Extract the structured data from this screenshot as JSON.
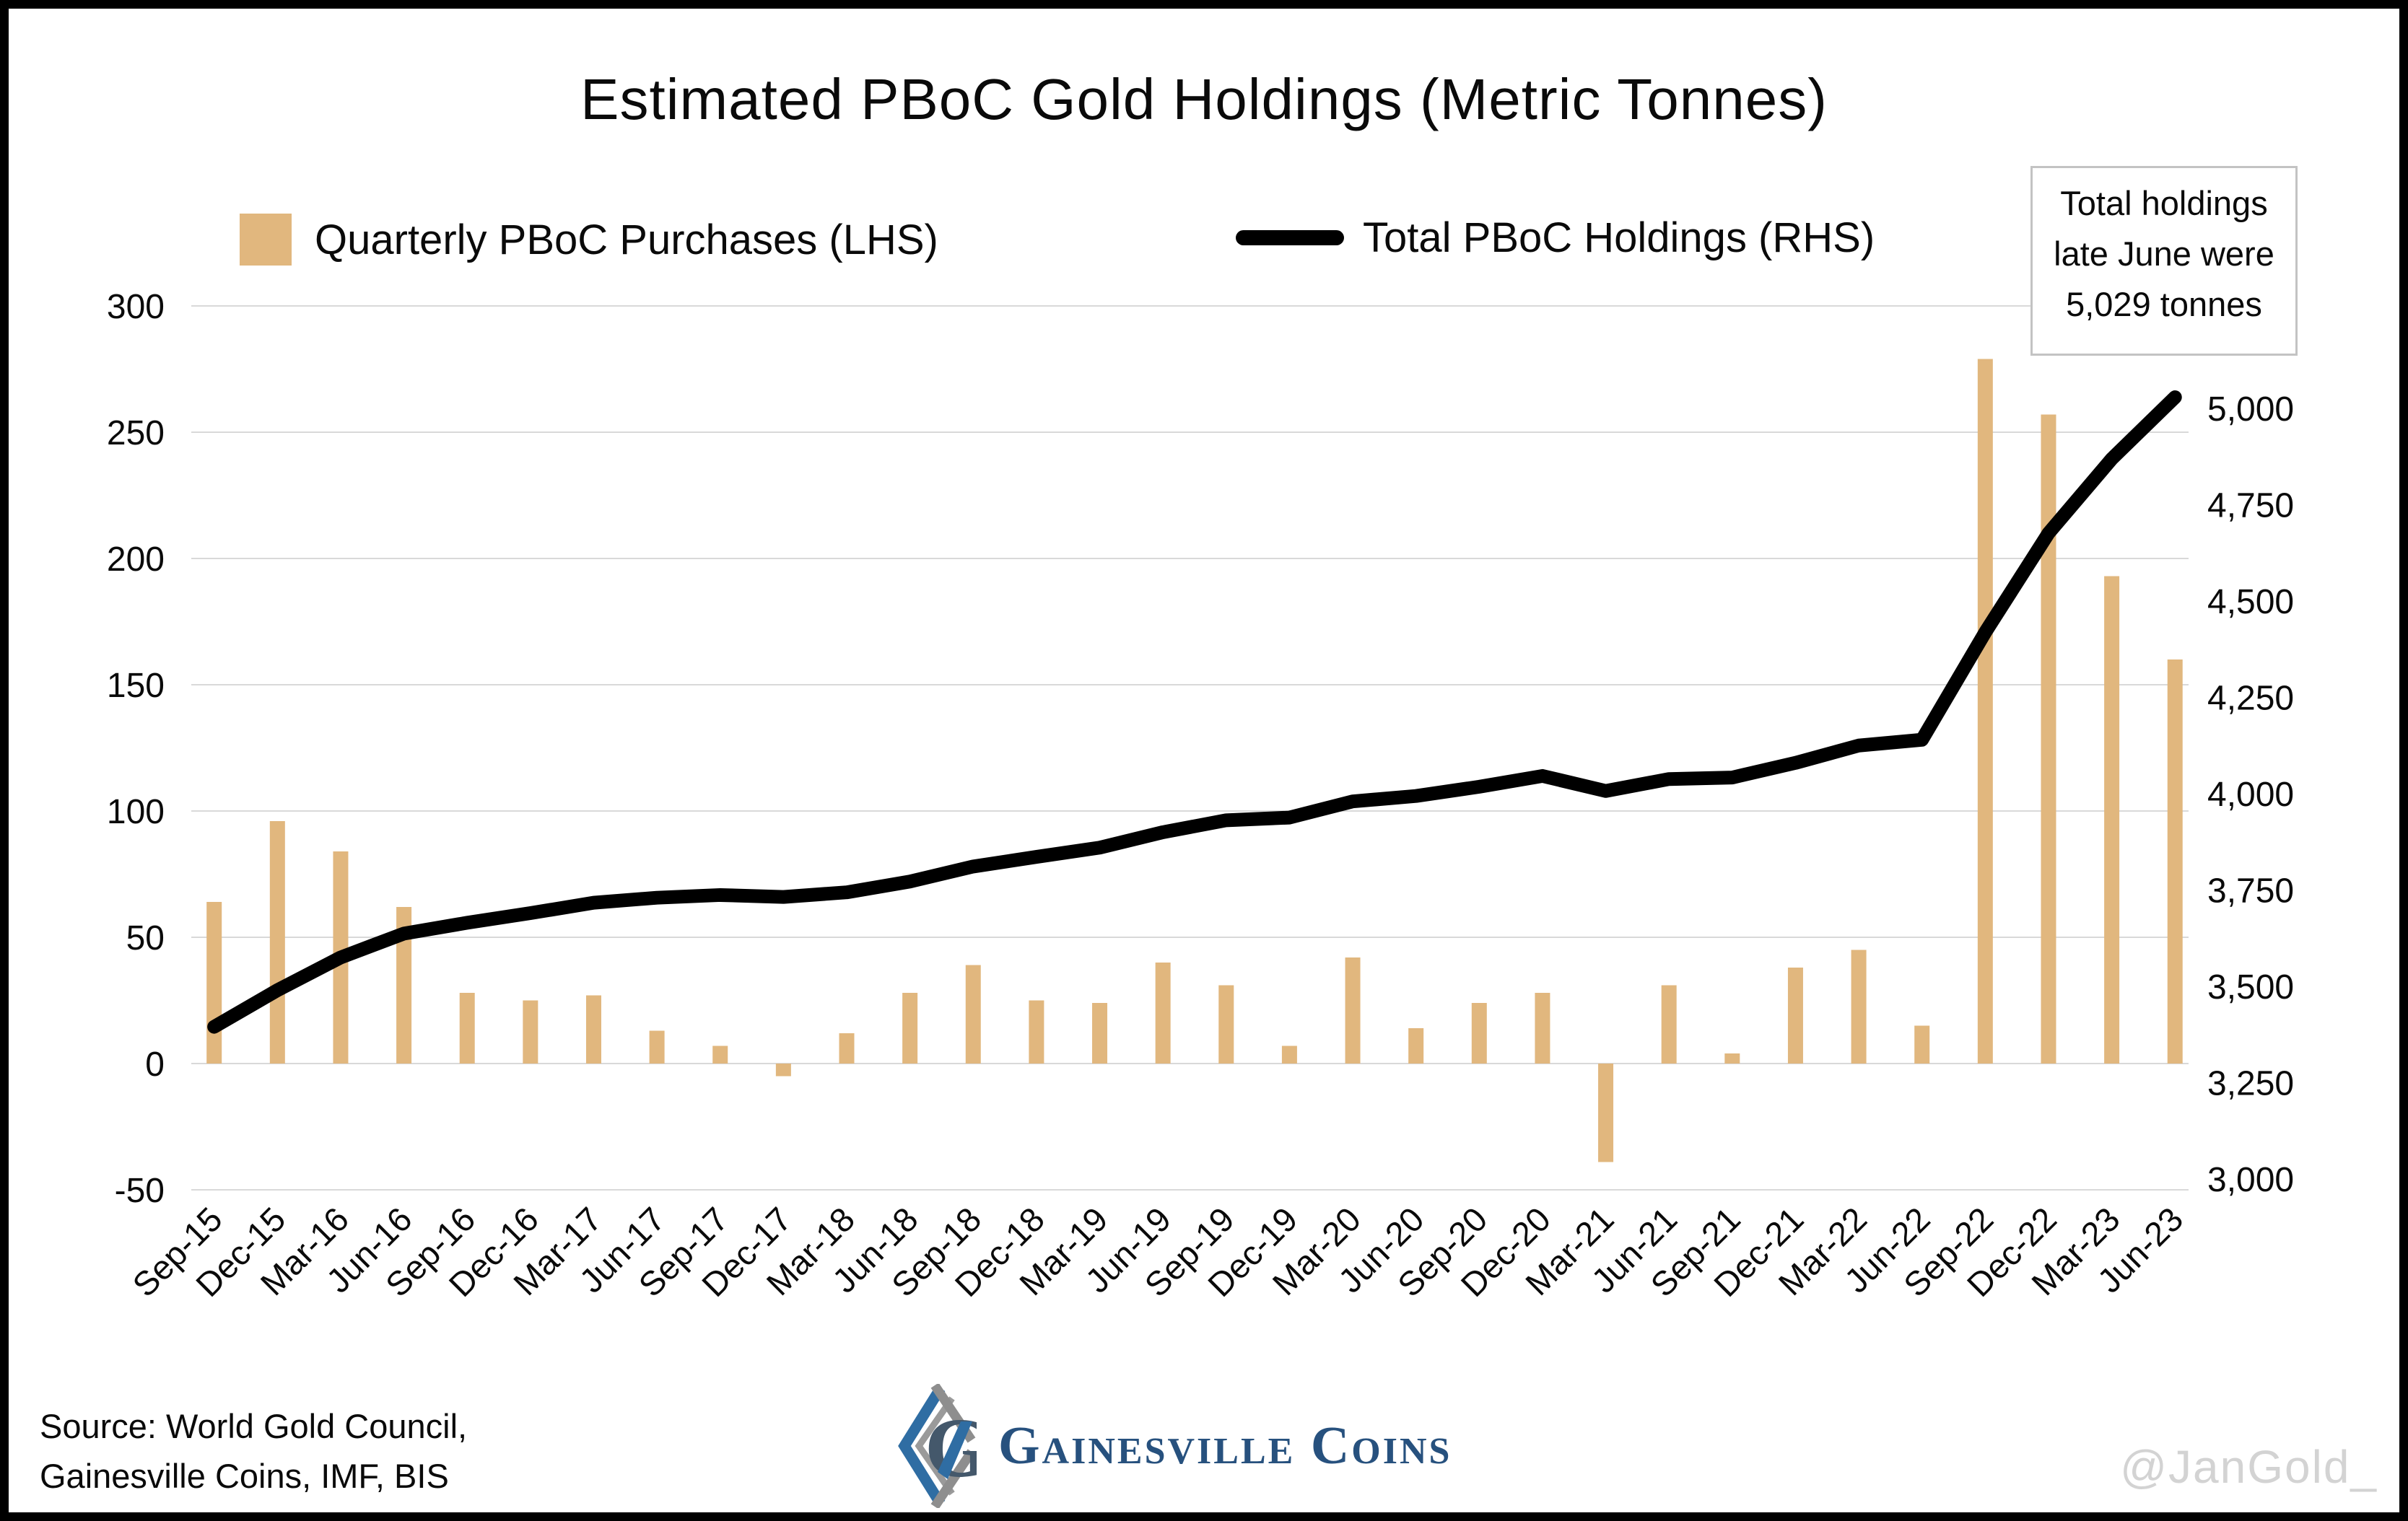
{
  "title": "Estimated PBoC Gold Holdings (Metric Tonnes)",
  "legend": {
    "purchases_label": "Quarterly PBoC Purchases (LHS)",
    "holdings_label": "Total PBoC Holdings (RHS)"
  },
  "annotation": {
    "line1": "Total holdings",
    "line2": "late June were",
    "line3": "5,029 tonnes"
  },
  "source": {
    "line1": "Source: World Gold Council,",
    "line2": "Gainesville Coins, IMF, BIS"
  },
  "logo": {
    "text": "Gainesville Coins"
  },
  "watermark": "@JanGold_",
  "colors": {
    "bar": "#E1B77E",
    "line": "#000000",
    "grid": "#D9D9D9",
    "tick_text": "#0a0a0a",
    "annotation_border": "#C3C3C3",
    "watermark": "#D3D3D3"
  },
  "chart_data": {
    "type": "bar",
    "subtype": "combo-bar-line-dual-axis",
    "title": "Estimated PBoC Gold Holdings (Metric Tonnes)",
    "categories": [
      "Sep-15",
      "Dec-15",
      "Mar-16",
      "Jun-16",
      "Sep-16",
      "Dec-16",
      "Mar-17",
      "Jun-17",
      "Sep-17",
      "Dec-17",
      "Mar-18",
      "Jun-18",
      "Sep-18",
      "Dec-18",
      "Mar-19",
      "Jun-19",
      "Sep-19",
      "Dec-19",
      "Mar-20",
      "Jun-20",
      "Sep-20",
      "Dec-20",
      "Mar-21",
      "Jun-21",
      "Sep-21",
      "Dec-21",
      "Mar-22",
      "Jun-22",
      "Sep-22",
      "Dec-22",
      "Mar-23",
      "Jun-23"
    ],
    "series": [
      {
        "name": "Quarterly PBoC Purchases (LHS)",
        "type": "bar",
        "axis": "left",
        "color": "#E1B77E",
        "values": [
          64,
          96,
          84,
          62,
          28,
          25,
          27,
          13,
          7,
          -5,
          12,
          28,
          39,
          25,
          24,
          40,
          31,
          7,
          42,
          14,
          24,
          28,
          -39,
          31,
          4,
          38,
          45,
          15,
          279,
          257,
          193,
          160
        ]
      },
      {
        "name": "Total PBoC Holdings (RHS)",
        "type": "line",
        "axis": "right",
        "color": "#000000",
        "values": [
          3395,
          3490,
          3575,
          3637,
          3665,
          3690,
          3717,
          3730,
          3737,
          3732,
          3744,
          3772,
          3811,
          3836,
          3860,
          3900,
          3931,
          3938,
          3980,
          3994,
          4018,
          4046,
          4007,
          4038,
          4042,
          4080,
          4125,
          4140,
          4419,
          4676,
          4869,
          5029
        ]
      }
    ],
    "left_axis": {
      "label": "",
      "ticks": [
        300,
        250,
        200,
        150,
        100,
        50,
        0,
        -50
      ],
      "range": [
        -50,
        300
      ]
    },
    "right_axis": {
      "label": "",
      "ticks": [
        5000,
        4750,
        4500,
        4250,
        4000,
        3750,
        3500,
        3250,
        3000
      ],
      "range": [
        3000,
        5000
      ],
      "tick_format": "comma"
    },
    "grid": true,
    "legend_position": "top",
    "annotation": "Total holdings late June were 5,029 tonnes",
    "xlabel": "",
    "ylabel": ""
  }
}
